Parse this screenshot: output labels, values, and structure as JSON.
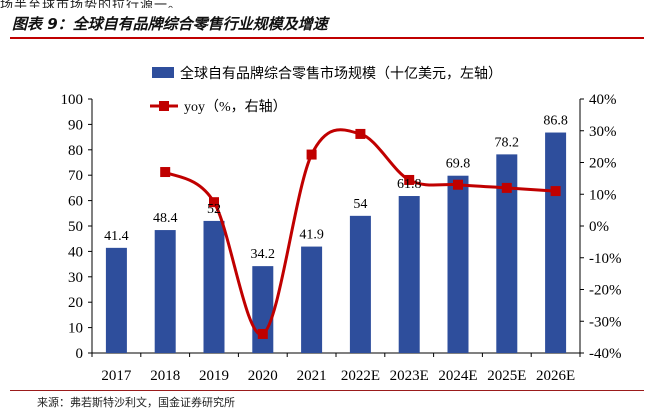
{
  "header": {
    "clipped_text": "场半至球市场势的拉行源一。",
    "figure_title": "图表 9：全球自有品牌综合零售行业规模及增速"
  },
  "source": "来源：弗若斯特沙利文，国金证券研究所",
  "colors": {
    "bar": "#2e4e9c",
    "line": "#c00000",
    "rule": "#c00000"
  },
  "chart_data": {
    "type": "bar",
    "categories": [
      "2017",
      "2018",
      "2019",
      "2020",
      "2021",
      "2022E",
      "2023E",
      "2024E",
      "2025E",
      "2026E"
    ],
    "series": [
      {
        "name": "全球自有品牌综合零售市场规模（十亿美元，左轴）",
        "type": "bar",
        "axis": "left",
        "values": [
          41.4,
          48.4,
          52,
          34.2,
          41.9,
          54,
          61.8,
          69.8,
          78.2,
          86.8
        ]
      },
      {
        "name": "yoy（%，右轴）",
        "type": "line",
        "axis": "right",
        "values": [
          null,
          17,
          7.5,
          -34,
          22.5,
          29,
          14.5,
          13,
          12,
          11
        ]
      }
    ],
    "data_labels": [
      "41.4",
      "48.4",
      "52",
      "34.2",
      "41.9",
      "54",
      "61.8",
      "69.8",
      "78.2",
      "86.8"
    ],
    "y_left": {
      "min": 0,
      "max": 100,
      "step": 10,
      "ticks": [
        "0",
        "10",
        "20",
        "30",
        "40",
        "50",
        "60",
        "70",
        "80",
        "90",
        "100"
      ]
    },
    "y_right": {
      "min": -40,
      "max": 40,
      "step": 10,
      "ticks": [
        "-40%",
        "-30%",
        "-20%",
        "-10%",
        "0%",
        "10%",
        "20%",
        "30%",
        "40%"
      ]
    },
    "legend_position": "top-center",
    "grid": false
  }
}
